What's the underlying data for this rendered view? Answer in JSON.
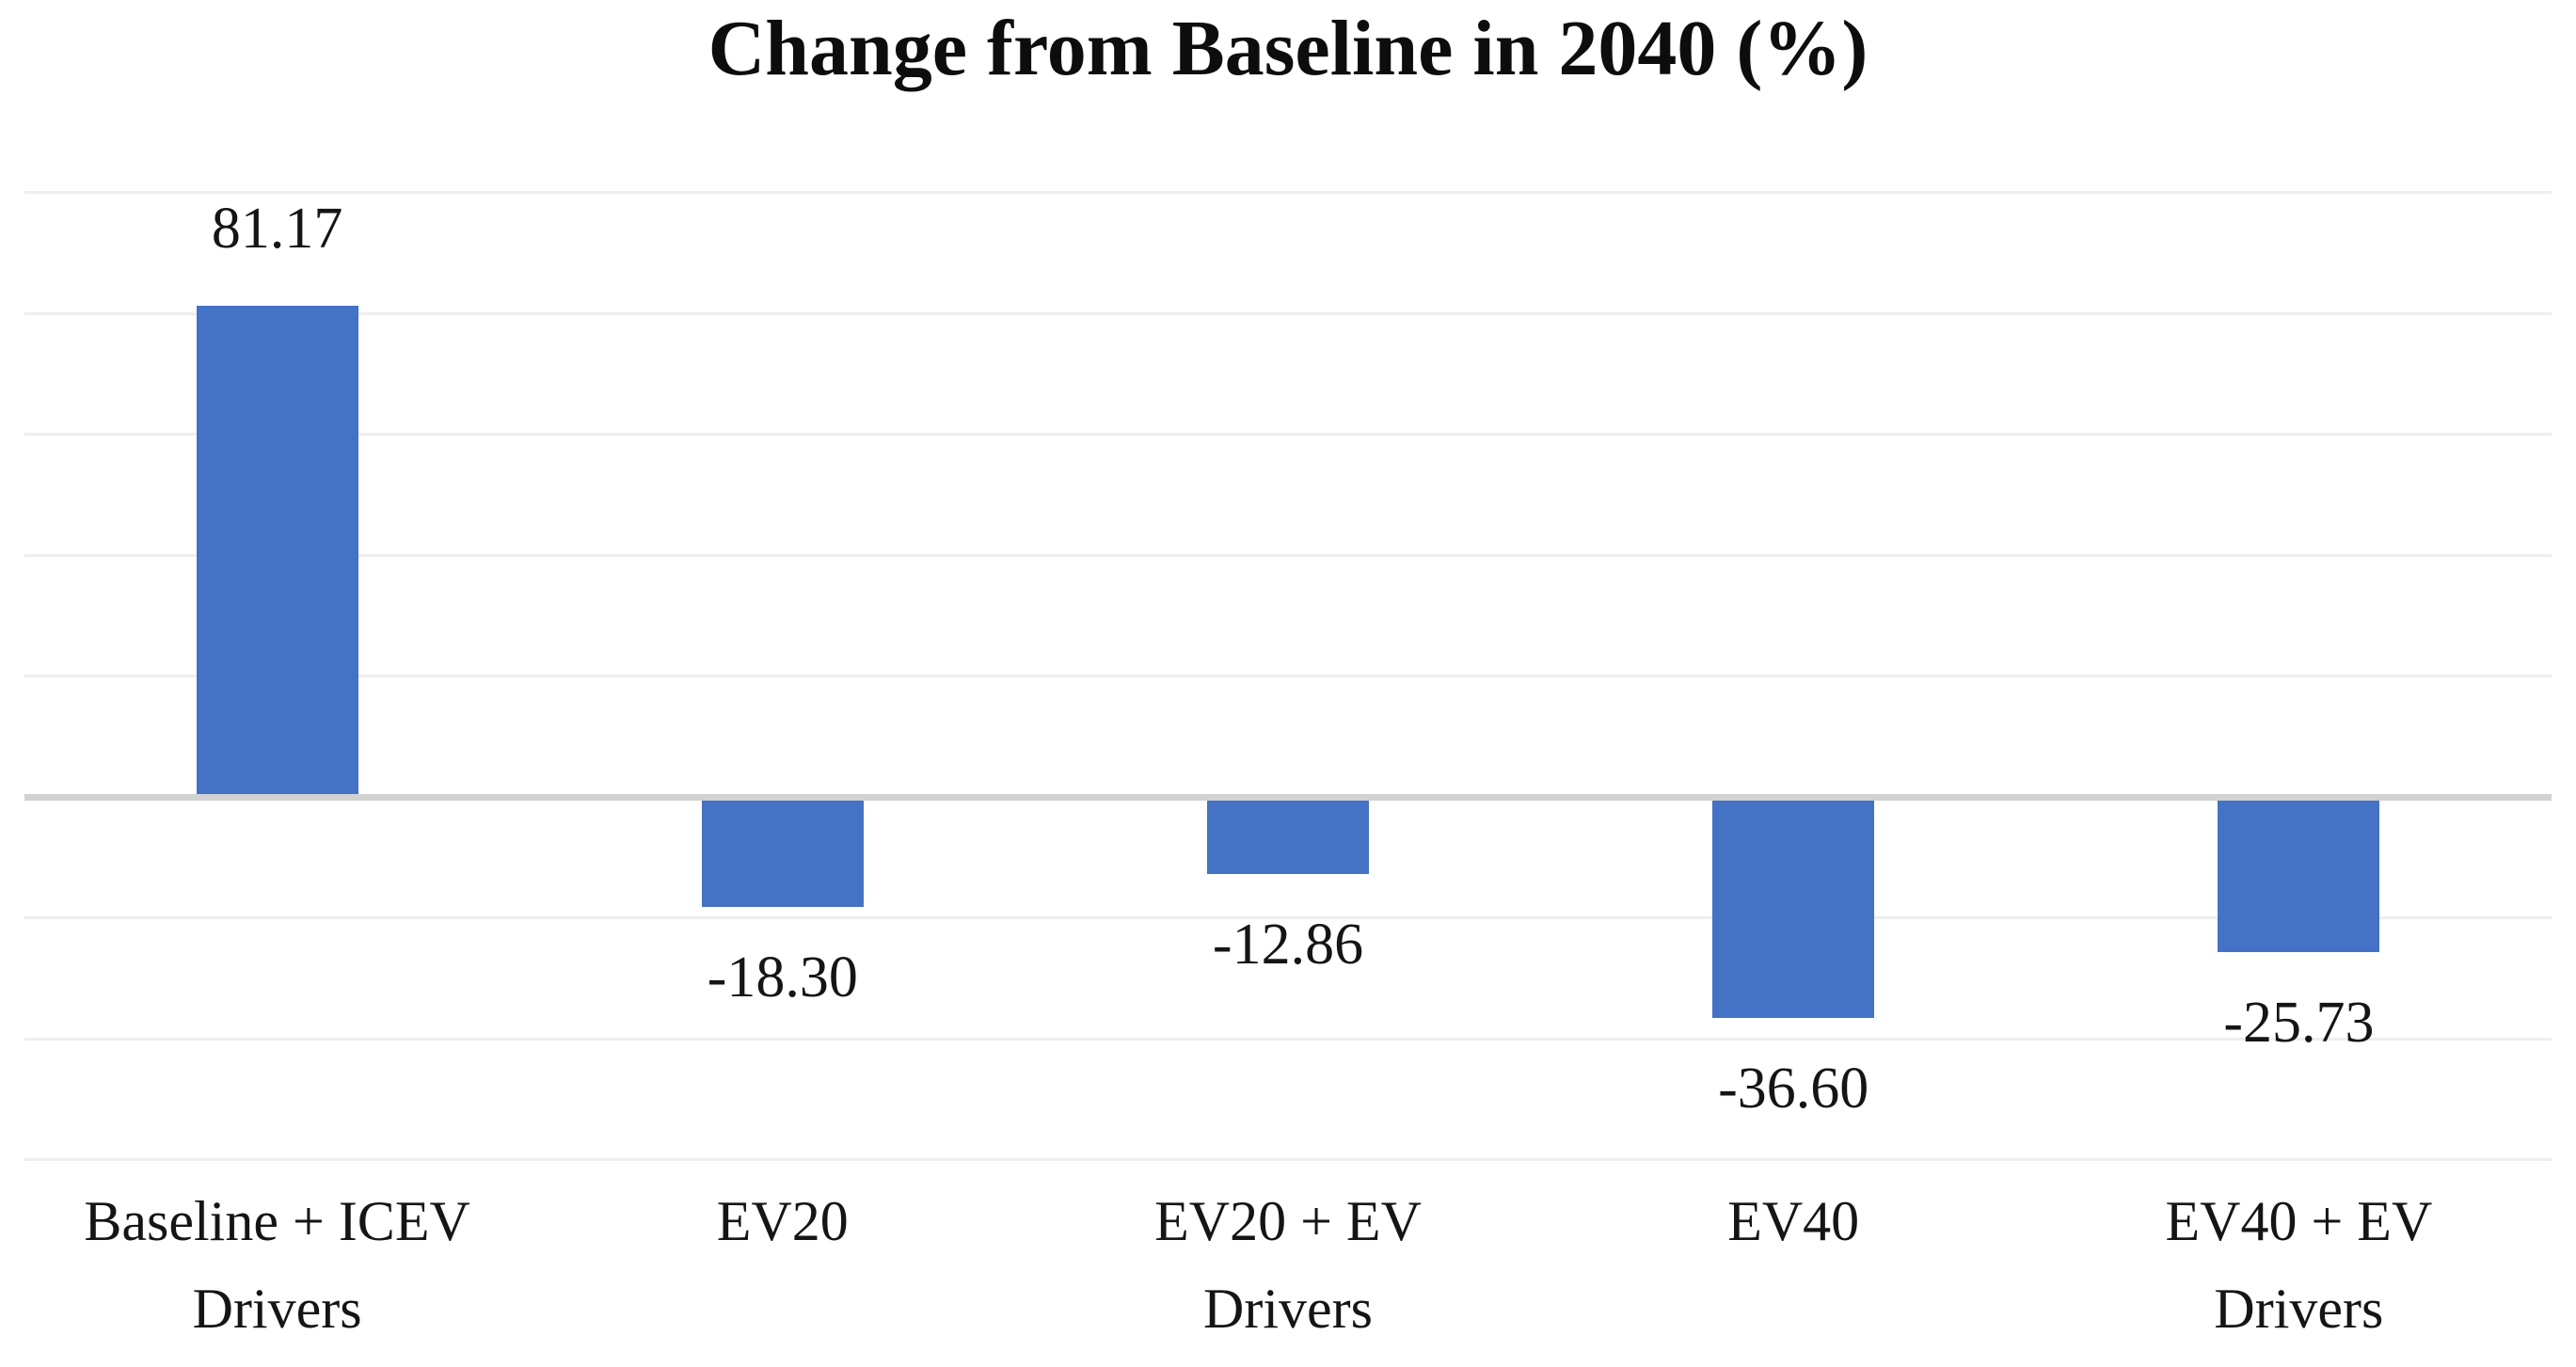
{
  "chart_data": {
    "type": "bar",
    "title": "Change from Baseline in 2040 (%)",
    "categories": [
      "Baseline + ICEV Drivers",
      "EV20",
      "EV20 + EV Drivers",
      "EV40",
      "EV40 + EV Drivers"
    ],
    "category_label_lines": [
      [
        "Baseline + ICEV",
        "Drivers"
      ],
      [
        "EV20"
      ],
      [
        "EV20 + EV",
        "Drivers"
      ],
      [
        "EV40"
      ],
      [
        "EV40 + EV",
        "Drivers"
      ]
    ],
    "values": [
      81.17,
      -18.3,
      -12.86,
      -36.6,
      -25.73
    ],
    "data_labels": [
      "81.17",
      "-18.30",
      "-12.86",
      "-36.60",
      "-25.73"
    ],
    "xlabel": "",
    "ylabel": "",
    "ylim": [
      -60,
      100
    ],
    "gridline_step": 20,
    "grid": true,
    "legend": false,
    "y_axis_tick_labels_visible": false,
    "bar_color": "#4472C4",
    "gridline_color": "#eeeeee",
    "zero_line_color": "#d2d2d2",
    "text_color": "#151515"
  }
}
